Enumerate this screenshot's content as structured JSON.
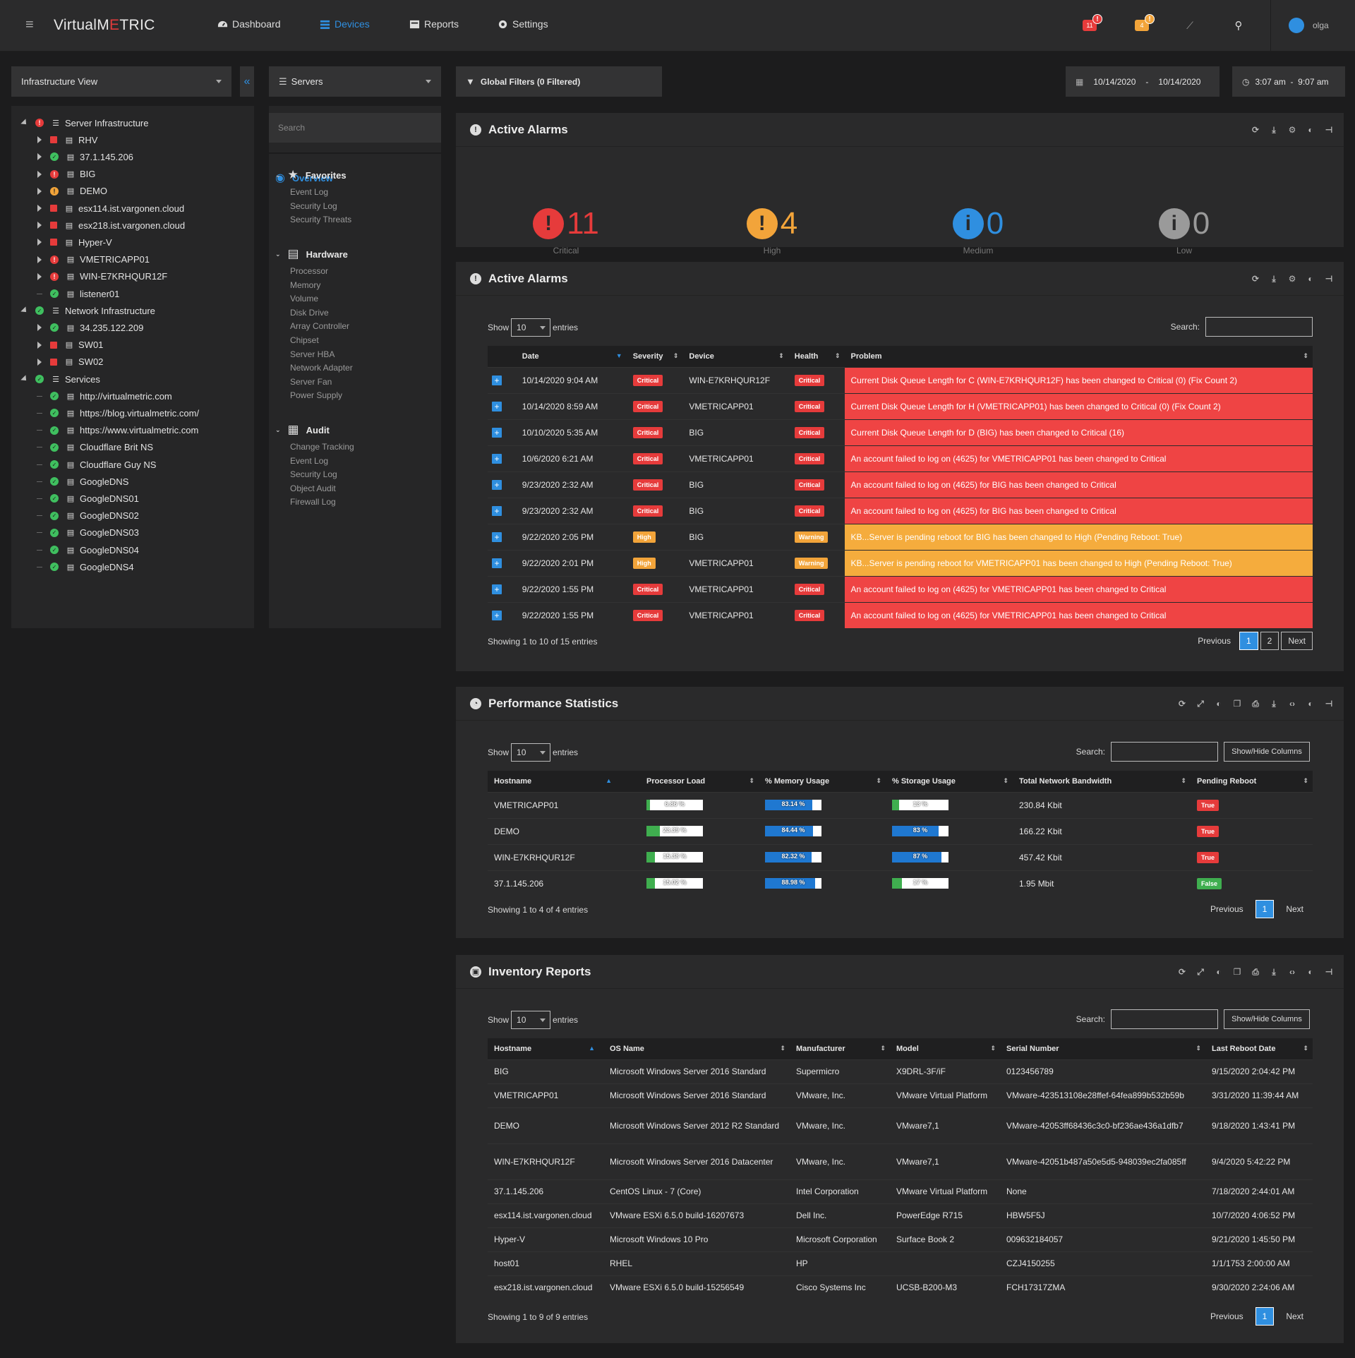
{
  "brand": {
    "part1": "VirtualM",
    "part2": "E",
    "part3": "TRIC"
  },
  "nav": [
    {
      "label": "Dashboard",
      "icon": "dashboard-icon"
    },
    {
      "label": "Devices",
      "icon": "devices-icon"
    },
    {
      "label": "Reports",
      "icon": "reports-icon"
    },
    {
      "label": "Settings",
      "icon": "gear-icon"
    }
  ],
  "topright": {
    "critical_count": "11",
    "warning_count": "4",
    "alert_badge": "!",
    "user": "olga"
  },
  "colors": {
    "accent": "#2f8fe0",
    "critical": "#e63b3b",
    "high": "#f2a43a",
    "ok": "#3fbf5f"
  },
  "left_select": "Infrastructure View",
  "collapse_label": "«",
  "servers_select": "Servers",
  "global_filters": "Global Filters (0 Filtered)",
  "date_from": "10/14/2020",
  "date_sep": "-",
  "date_to": "10/14/2020",
  "time_range": "3:07 am  -  9:07 am",
  "tree": [
    {
      "label": "Server Infrastructure",
      "level": 0,
      "status": "err",
      "open": true
    },
    {
      "label": "RHV",
      "level": 1,
      "status": "sq"
    },
    {
      "label": "37.1.145.206",
      "level": 1,
      "status": "ok"
    },
    {
      "label": "BIG",
      "level": 1,
      "status": "err"
    },
    {
      "label": "DEMO",
      "level": 1,
      "status": "warn"
    },
    {
      "label": "esx114.ist.vargonen.cloud",
      "level": 1,
      "status": "sq"
    },
    {
      "label": "esx218.ist.vargonen.cloud",
      "level": 1,
      "status": "sq"
    },
    {
      "label": "Hyper-V",
      "level": 1,
      "status": "sq"
    },
    {
      "label": "VMETRICAPP01",
      "level": 1,
      "status": "err"
    },
    {
      "label": "WIN-E7KRHQUR12F",
      "level": 1,
      "status": "err"
    },
    {
      "label": "listener01",
      "level": 1,
      "status": "ok",
      "leaf": true
    },
    {
      "label": "Network Infrastructure",
      "level": 0,
      "status": "ok",
      "open": true
    },
    {
      "label": "34.235.122.209",
      "level": 1,
      "status": "ok"
    },
    {
      "label": "SW01",
      "level": 1,
      "status": "sq"
    },
    {
      "label": "SW02",
      "level": 1,
      "status": "sq"
    },
    {
      "label": "Services",
      "level": 0,
      "status": "ok",
      "open": true
    },
    {
      "label": "http://virtualmetric.com",
      "level": 1,
      "status": "ok",
      "leaf": true
    },
    {
      "label": "https://blog.virtualmetric.com/",
      "level": 1,
      "status": "ok",
      "leaf": true
    },
    {
      "label": "https://www.virtualmetric.com",
      "level": 1,
      "status": "ok",
      "leaf": true
    },
    {
      "label": "Cloudflare Brit NS",
      "level": 1,
      "status": "ok",
      "leaf": true
    },
    {
      "label": "Cloudflare Guy NS",
      "level": 1,
      "status": "ok",
      "leaf": true
    },
    {
      "label": "GoogleDNS",
      "level": 1,
      "status": "ok",
      "leaf": true
    },
    {
      "label": "GoogleDNS01",
      "level": 1,
      "status": "ok",
      "leaf": true
    },
    {
      "label": "GoogleDNS02",
      "level": 1,
      "status": "ok",
      "leaf": true
    },
    {
      "label": "GoogleDNS03",
      "level": 1,
      "status": "ok",
      "leaf": true
    },
    {
      "label": "GoogleDNS04",
      "level": 1,
      "status": "ok",
      "leaf": true
    },
    {
      "label": "GoogleDNS4",
      "level": 1,
      "status": "ok",
      "leaf": true
    }
  ],
  "mid": {
    "search_placeholder": "Search",
    "overview": "Overview",
    "favorites": {
      "title": "Favorites",
      "items": [
        "Event Log",
        "Security Log",
        "Security Threats"
      ]
    },
    "hardware": {
      "title": "Hardware",
      "items": [
        "Processor",
        "Memory",
        "Volume",
        "Disk Drive",
        "Array Controller",
        "Chipset",
        "Server HBA",
        "Network Adapter",
        "Server Fan",
        "Power Supply"
      ]
    },
    "audit": {
      "title": "Audit",
      "items": [
        "Change Tracking",
        "Event Log",
        "Security Log",
        "Object Audit",
        "Firewall Log"
      ]
    }
  },
  "summary": {
    "title": "Active Alarms",
    "items": [
      {
        "count": "11",
        "label": "Critical",
        "color": "#e63b3b",
        "icon": "!"
      },
      {
        "count": "4",
        "label": "High",
        "color": "#f2a43a",
        "icon": "!"
      },
      {
        "count": "0",
        "label": "Medium",
        "color": "#2f8fe0",
        "icon": "i"
      },
      {
        "count": "0",
        "label": "Low",
        "color": "#9a9a9a",
        "icon": "i"
      }
    ]
  },
  "alarms": {
    "title": "Active Alarms",
    "show": "Show",
    "show_value": "10",
    "entries": "entries",
    "search_label": "Search:",
    "columns": [
      "Date",
      "Severity",
      "Device",
      "Health",
      "Problem"
    ],
    "rows": [
      {
        "date": "10/14/2020 9:04 AM",
        "sev": "Critical",
        "device": "WIN-E7KRHQUR12F",
        "health": "Critical",
        "problem": "Current Disk Queue Length for C (WIN-E7KRHQUR12F) has been changed to Critical (0) (Fix Count 2)",
        "level": "crit"
      },
      {
        "date": "10/14/2020 8:59 AM",
        "sev": "Critical",
        "device": "VMETRICAPP01",
        "health": "Critical",
        "problem": "Current Disk Queue Length for H (VMETRICAPP01) has been changed to Critical (0) (Fix Count 2)",
        "level": "crit"
      },
      {
        "date": "10/10/2020 5:35 AM",
        "sev": "Critical",
        "device": "BIG",
        "health": "Critical",
        "problem": "Current Disk Queue Length for D (BIG) has been changed to Critical (16)",
        "level": "crit"
      },
      {
        "date": "10/6/2020 6:21 AM",
        "sev": "Critical",
        "device": "VMETRICAPP01",
        "health": "Critical",
        "problem": "An account failed to log on (4625) for VMETRICAPP01 has been changed to Critical",
        "level": "crit"
      },
      {
        "date": "9/23/2020 2:32 AM",
        "sev": "Critical",
        "device": "BIG",
        "health": "Critical",
        "problem": "An account failed to log on (4625) for BIG has been changed to Critical",
        "level": "crit"
      },
      {
        "date": "9/23/2020 2:32 AM",
        "sev": "Critical",
        "device": "BIG",
        "health": "Critical",
        "problem": "An account failed to log on (4625) for BIG has been changed to Critical",
        "level": "crit"
      },
      {
        "date": "9/22/2020 2:05 PM",
        "sev": "High",
        "device": "BIG",
        "health": "Warning",
        "problem": "KB...Server is pending reboot for BIG has been changed to High (Pending Reboot: True)",
        "level": "high"
      },
      {
        "date": "9/22/2020 2:01 PM",
        "sev": "High",
        "device": "VMETRICAPP01",
        "health": "Warning",
        "problem": "KB...Server is pending reboot for VMETRICAPP01 has been changed to High (Pending Reboot: True)",
        "level": "high"
      },
      {
        "date": "9/22/2020 1:55 PM",
        "sev": "Critical",
        "device": "VMETRICAPP01",
        "health": "Critical",
        "problem": "An account failed to log on (4625) for VMETRICAPP01 has been changed to Critical",
        "level": "crit"
      },
      {
        "date": "9/22/2020 1:55 PM",
        "sev": "Critical",
        "device": "VMETRICAPP01",
        "health": "Critical",
        "problem": "An account failed to log on (4625) for VMETRICAPP01 has been changed to Critical",
        "level": "crit"
      }
    ],
    "footer": "Showing 1 to 10 of 15 entries",
    "prev": "Previous",
    "pages": [
      "1",
      "2"
    ],
    "next": "Next"
  },
  "perf": {
    "title": "Performance Statistics",
    "show": "Show",
    "show_value": "10",
    "entries": "entries",
    "search_label": "Search:",
    "showhide": "Show/Hide Columns",
    "columns": [
      "Hostname",
      "Processor Load",
      "% Memory Usage",
      "% Storage Usage",
      "Total Network Bandwidth",
      "Pending Reboot"
    ],
    "rows": [
      {
        "host": "VMETRICAPP01",
        "cpu": 6.86,
        "cpu_label": "6.86 %",
        "mem": 83.14,
        "mem_label": "83.14 %",
        "sto": 13,
        "sto_label": "13 %",
        "net": "230.84 Kbit",
        "reboot": "True"
      },
      {
        "host": "DEMO",
        "cpu": 23.39,
        "cpu_label": "23.39 %",
        "mem": 84.44,
        "mem_label": "84.44 %",
        "sto": 83,
        "sto_label": "83 %",
        "net": "166.22 Kbit",
        "reboot": "True"
      },
      {
        "host": "WIN-E7KRHQUR12F",
        "cpu": 15.38,
        "cpu_label": "15.38 %",
        "mem": 82.32,
        "mem_label": "82.32 %",
        "sto": 87,
        "sto_label": "87 %",
        "net": "457.42 Kbit",
        "reboot": "True"
      },
      {
        "host": "37.1.145.206",
        "cpu": 15.02,
        "cpu_label": "15.02 %",
        "mem": 88.98,
        "mem_label": "88.98 %",
        "sto": 17,
        "sto_label": "17 %",
        "net": "1.95 Mbit",
        "reboot": "False"
      }
    ],
    "footer": "Showing 1 to 4 of 4 entries",
    "prev": "Previous",
    "page": "1",
    "next": "Next"
  },
  "inv": {
    "title": "Inventory Reports",
    "show": "Show",
    "show_value": "10",
    "entries": "entries",
    "search_label": "Search:",
    "showhide": "Show/Hide Columns",
    "columns": [
      "Hostname",
      "OS Name",
      "Manufacturer",
      "Model",
      "Serial Number",
      "Last Reboot Date"
    ],
    "rows": [
      {
        "host": "BIG",
        "os": "Microsoft Windows Server 2016 Standard",
        "man": "Supermicro",
        "model": "X9DRL-3F/iF",
        "serial": "0123456789",
        "reboot": "9/15/2020 2:04:42 PM"
      },
      {
        "host": "VMETRICAPP01",
        "os": "Microsoft Windows Server 2016 Standard",
        "man": "VMware, Inc.",
        "model": "VMware Virtual Platform",
        "serial": "VMware-423513108e28ffef-64fea899b532b59b",
        "reboot": "3/31/2020 11:39:44 AM"
      },
      {
        "host": "DEMO",
        "os": "Microsoft Windows Server 2012 R2 Standard",
        "man": "VMware, Inc.",
        "model": "VMware7,1",
        "serial": "VMware-42053ff68436c3c0-bf236ae436a1dfb7",
        "reboot": "9/18/2020 1:43:41 PM"
      },
      {
        "host": "WIN-E7KRHQUR12F",
        "os": "Microsoft Windows Server 2016 Datacenter",
        "man": "VMware, Inc.",
        "model": "VMware7,1",
        "serial": "VMware-42051b487a50e5d5-948039ec2fa085ff",
        "reboot": "9/4/2020 5:42:22 PM"
      },
      {
        "host": "37.1.145.206",
        "os": "CentOS Linux - 7 (Core)",
        "man": "Intel Corporation",
        "model": "VMware Virtual Platform",
        "serial": "None",
        "reboot": "7/18/2020 2:44:01 AM"
      },
      {
        "host": "esx114.ist.vargonen.cloud",
        "os": "VMware ESXi 6.5.0 build-16207673",
        "man": "Dell Inc.",
        "model": "PowerEdge R715",
        "serial": "HBW5F5J",
        "reboot": "10/7/2020 4:06:52 PM"
      },
      {
        "host": "Hyper-V",
        "os": "Microsoft Windows 10 Pro",
        "man": "Microsoft Corporation",
        "model": "Surface Book 2",
        "serial": "009632184057",
        "reboot": "9/21/2020 1:45:50 PM"
      },
      {
        "host": "host01",
        "os": "RHEL",
        "man": "HP",
        "model": "",
        "serial": "CZJ4150255",
        "reboot": "1/1/1753 2:00:00 AM"
      },
      {
        "host": "esx218.ist.vargonen.cloud",
        "os": "VMware ESXi 6.5.0 build-15256549",
        "man": "Cisco Systems Inc",
        "model": "UCSB-B200-M3",
        "serial": "FCH17317ZMA",
        "reboot": "9/30/2020 2:24:06 AM"
      }
    ],
    "footer": "Showing 1 to 9 of 9 entries",
    "prev": "Previous",
    "page": "1",
    "next": "Next"
  }
}
